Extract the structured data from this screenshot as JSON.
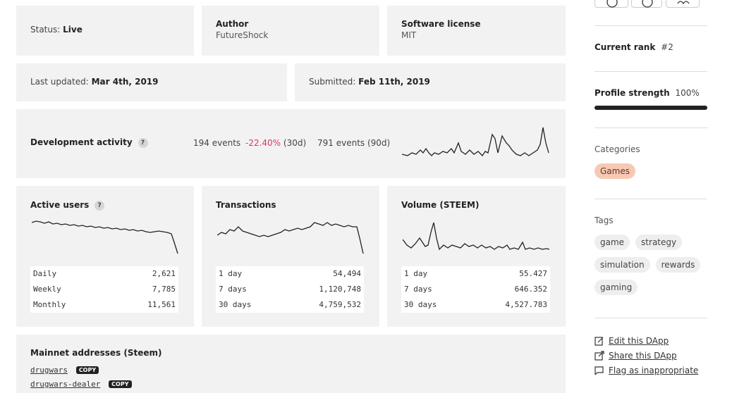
{
  "status": {
    "label": "Status:",
    "value": "Live"
  },
  "author": {
    "label": "Author",
    "value": "FutureShock"
  },
  "license": {
    "label": "Software license",
    "value": "MIT"
  },
  "last_updated": {
    "label": "Last updated:",
    "value": "Mar 4th, 2019"
  },
  "submitted": {
    "label": "Submitted:",
    "value": "Feb 11th, 2019"
  },
  "dev_activity": {
    "label": "Development activity",
    "help": "?",
    "events_30d": "194 events",
    "change": "-22.40%",
    "period_30d": "(30d)",
    "events_90d": "791 events (90d)"
  },
  "active_users": {
    "label": "Active users",
    "help": "?",
    "rows": [
      {
        "k": "Daily",
        "v": "2,621"
      },
      {
        "k": "Weekly",
        "v": "7,785"
      },
      {
        "k": "Monthly",
        "v": "11,561"
      }
    ]
  },
  "transactions": {
    "label": "Transactions",
    "rows": [
      {
        "k": "1 day",
        "v": "54,494"
      },
      {
        "k": "7 days",
        "v": "1,120,748"
      },
      {
        "k": "30 days",
        "v": "4,759,532"
      }
    ]
  },
  "volume": {
    "label": "Volume (STEEM)",
    "rows": [
      {
        "k": "1 day",
        "v": "55.427"
      },
      {
        "k": "7 days",
        "v": "646.352"
      },
      {
        "k": "30 days",
        "v": "4,527.783"
      }
    ]
  },
  "mainnet": {
    "label": "Mainnet addresses (Steem)",
    "copy": "COPY",
    "addresses": [
      "drugwars",
      "drugwars-dealer"
    ]
  },
  "sidebar": {
    "rank_label": "Current rank",
    "rank_value": "#2",
    "profile_label": "Profile strength",
    "profile_value": "100%",
    "profile_fraction": 1.0,
    "categories_label": "Categories",
    "categories": [
      "Games"
    ],
    "tags_label": "Tags",
    "tags": [
      "game",
      "strategy",
      "simulation",
      "rewards",
      "gaming"
    ],
    "links": {
      "edit": "Edit this DApp",
      "share": "Share this DApp",
      "flag": "Flag as inappropriate"
    }
  },
  "colors": {
    "negative": "#d93a5e",
    "card": "#f2f2f2",
    "category": "#f8c8b4"
  }
}
